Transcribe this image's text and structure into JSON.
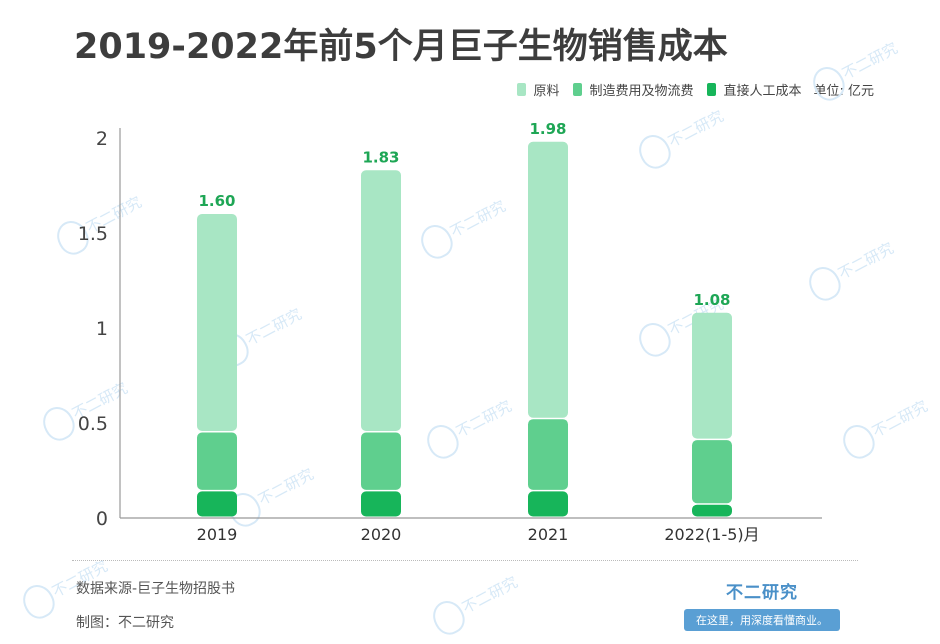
{
  "title": "2019-2022年前5个月巨子生物销售成本",
  "legend": {
    "items": [
      {
        "label": "原料",
        "color": "#a8e6c4"
      },
      {
        "label": "制造费用及物流费",
        "color": "#5fcf8e"
      },
      {
        "label": "直接人工成本",
        "color": "#17b55a"
      }
    ],
    "unit": "单位: 亿元"
  },
  "footer": {
    "source": "数据来源-巨子生物招股书",
    "author": "制图：不二研究",
    "brand_name": "不二研究",
    "brand_slogan": "在这里，用深度看懂商业。"
  },
  "watermark": "不二研究",
  "chart_data": {
    "type": "bar",
    "stacked": true,
    "categories": [
      "2019",
      "2020",
      "2021",
      "2022(1-5)月"
    ],
    "series": [
      {
        "name": "直接人工成本",
        "color": "#17b55a",
        "values": [
          0.14,
          0.14,
          0.14,
          0.07
        ]
      },
      {
        "name": "制造费用及物流费",
        "color": "#5fcf8e",
        "values": [
          0.31,
          0.31,
          0.38,
          0.34
        ]
      },
      {
        "name": "原料",
        "color": "#a8e6c4",
        "values": [
          1.15,
          1.38,
          1.46,
          0.67
        ]
      }
    ],
    "totals": [
      1.6,
      1.83,
      1.98,
      1.08
    ],
    "total_labels": [
      "1.60",
      "1.83",
      "1.98",
      "1.08"
    ],
    "yticks": [
      0,
      0.5,
      1,
      1.5,
      2
    ],
    "ytick_labels": [
      "0",
      "0.5",
      "1",
      "1.5",
      "2"
    ],
    "ylim": [
      0,
      2
    ],
    "grid": false,
    "legend_position": "top-right"
  }
}
